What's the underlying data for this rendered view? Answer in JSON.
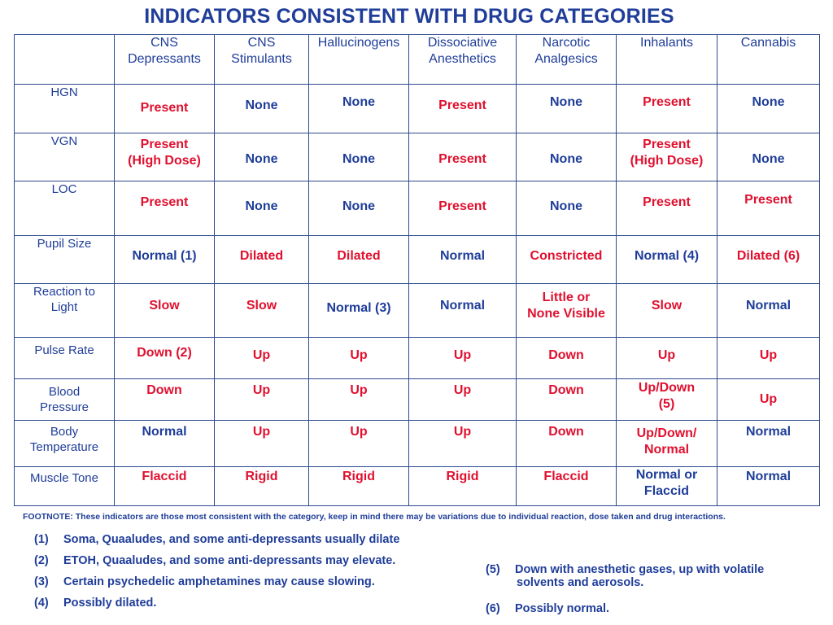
{
  "title": "INDICATORS CONSISTENT WITH DRUG CATEGORIES",
  "columns": [
    "CNS\nDepressants",
    "CNS\nStimulants",
    "Hallucinogens",
    "Dissociative\nAnesthetics",
    "Narcotic\nAnalgesics",
    "Inhalants",
    "Cannabis"
  ],
  "rows": [
    {
      "label": "HGN",
      "cells": [
        {
          "text": "Present",
          "color": "red"
        },
        {
          "text": "None",
          "color": "blue"
        },
        {
          "text": "None",
          "color": "blue"
        },
        {
          "text": "Present",
          "color": "red"
        },
        {
          "text": "None",
          "color": "blue"
        },
        {
          "text": "Present",
          "color": "red"
        },
        {
          "text": "None",
          "color": "blue"
        }
      ]
    },
    {
      "label": "VGN",
      "cells": [
        {
          "text": "Present\n(High Dose)",
          "color": "red"
        },
        {
          "text": "None",
          "color": "blue"
        },
        {
          "text": "None",
          "color": "blue"
        },
        {
          "text": "Present",
          "color": "red"
        },
        {
          "text": "None",
          "color": "blue"
        },
        {
          "text": "Present\n(High Dose)",
          "color": "red"
        },
        {
          "text": "None",
          "color": "blue"
        }
      ]
    },
    {
      "label": "LOC",
      "cells": [
        {
          "text": "Present",
          "color": "red"
        },
        {
          "text": "None",
          "color": "blue"
        },
        {
          "text": "None",
          "color": "blue"
        },
        {
          "text": "Present",
          "color": "red"
        },
        {
          "text": "None",
          "color": "blue"
        },
        {
          "text": "Present",
          "color": "red"
        },
        {
          "text": "Present",
          "color": "red"
        }
      ]
    },
    {
      "label": "Pupil Size",
      "cells": [
        {
          "text": "Normal (1)",
          "color": "blue"
        },
        {
          "text": "Dilated",
          "color": "red"
        },
        {
          "text": "Dilated",
          "color": "red"
        },
        {
          "text": "Normal",
          "color": "blue"
        },
        {
          "text": "Constricted",
          "color": "red"
        },
        {
          "text": "Normal (4)",
          "color": "blue"
        },
        {
          "text": "Dilated (6)",
          "color": "red"
        }
      ]
    },
    {
      "label": "Reaction to\nLight",
      "cells": [
        {
          "text": "Slow",
          "color": "red"
        },
        {
          "text": "Slow",
          "color": "red"
        },
        {
          "text": "Normal (3)",
          "color": "blue"
        },
        {
          "text": "Normal",
          "color": "blue"
        },
        {
          "text": "Little or\nNone Visible",
          "color": "red"
        },
        {
          "text": "Slow",
          "color": "red"
        },
        {
          "text": "Normal",
          "color": "blue"
        }
      ]
    },
    {
      "label": "Pulse Rate",
      "cells": [
        {
          "text": "Down (2)",
          "color": "red"
        },
        {
          "text": "Up",
          "color": "red"
        },
        {
          "text": "Up",
          "color": "red"
        },
        {
          "text": "Up",
          "color": "red"
        },
        {
          "text": "Down",
          "color": "red"
        },
        {
          "text": "Up",
          "color": "red"
        },
        {
          "text": "Up",
          "color": "red"
        }
      ]
    },
    {
      "label": "Blood\nPressure",
      "cells": [
        {
          "text": "Down",
          "color": "red"
        },
        {
          "text": "Up",
          "color": "red"
        },
        {
          "text": "Up",
          "color": "red"
        },
        {
          "text": "Up",
          "color": "red"
        },
        {
          "text": "Down",
          "color": "red"
        },
        {
          "text": "Up/Down\n(5)",
          "color": "red"
        },
        {
          "text": "Up",
          "color": "red"
        }
      ]
    },
    {
      "label": "Body\nTemperature",
      "cells": [
        {
          "text": "Normal",
          "color": "blue"
        },
        {
          "text": "Up",
          "color": "red"
        },
        {
          "text": "Up",
          "color": "red"
        },
        {
          "text": "Up",
          "color": "red"
        },
        {
          "text": "Down",
          "color": "red"
        },
        {
          "text": "Up/Down/\nNormal",
          "color": "red"
        },
        {
          "text": "Normal",
          "color": "blue"
        }
      ]
    },
    {
      "label": "Muscle Tone",
      "cells": [
        {
          "text": "Flaccid",
          "color": "red"
        },
        {
          "text": "Rigid",
          "color": "red"
        },
        {
          "text": "Rigid",
          "color": "red"
        },
        {
          "text": "Rigid",
          "color": "red"
        },
        {
          "text": "Flaccid",
          "color": "red"
        },
        {
          "text": "Normal or\nFlaccid",
          "color": "blue"
        },
        {
          "text": "Normal",
          "color": "blue"
        }
      ]
    }
  ],
  "footnote": "FOOTNOTE: These indicators are those most consistent with the category, keep in mind there may be variations due to individual reaction, dose taken and drug interactions.",
  "notes_left": [
    {
      "num": "(1)",
      "text": "Soma, Quaaludes, and some anti-depressants usually dilate"
    },
    {
      "num": "(2)",
      "text": "ETOH, Quaaludes, and some anti-depressants may elevate."
    },
    {
      "num": "(3)",
      "text": "Certain psychedelic amphetamines may cause slowing."
    },
    {
      "num": "(4)",
      "text": "Possibly dilated."
    }
  ],
  "notes_right": [
    {
      "num": "(5)",
      "text": "Down with anesthetic gases, up with volatile\nsolvents and aerosols."
    },
    {
      "num": "(6)",
      "text": "Possibly normal."
    }
  ],
  "colors": {
    "blue": "#1f3d99",
    "red": "#e0102f",
    "border": "#2b4a8e"
  }
}
